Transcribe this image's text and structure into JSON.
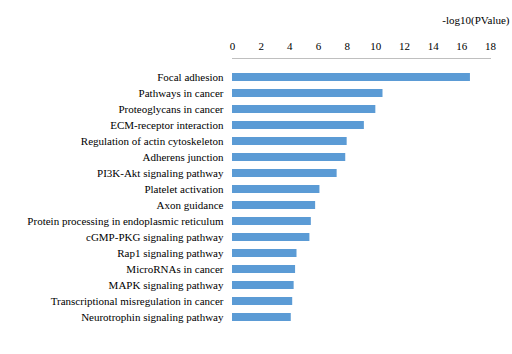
{
  "chart_data": {
    "type": "bar",
    "orientation": "horizontal",
    "x_label": "-log10(PValue)",
    "categories": [
      "Focal adhesion",
      "Pathways in cancer",
      "Proteoglycans in cancer",
      "ECM-receptor interaction",
      "Regulation of actin cytoskeleton",
      "Adherens junction",
      "PI3K-Akt signaling pathway",
      "Platelet activation",
      "Axon guidance",
      "Protein processing in endoplasmic reticulum",
      "cGMP-PKG signaling pathway",
      "Rap1 signaling pathway",
      "MicroRNAs in cancer",
      "MAPK signaling pathway",
      "Transcriptional misregulation in cancer",
      "Neurotrophin signaling pathway"
    ],
    "values": [
      16.6,
      10.5,
      10.0,
      9.2,
      8.0,
      7.9,
      7.3,
      6.1,
      5.8,
      5.5,
      5.4,
      4.5,
      4.4,
      4.3,
      4.2,
      4.1
    ],
    "color": "#5b9bd5",
    "xlim": [
      0,
      18
    ],
    "xticks": [
      0,
      2,
      4,
      6,
      8,
      10,
      12,
      14,
      16,
      18
    ],
    "grid": false
  }
}
